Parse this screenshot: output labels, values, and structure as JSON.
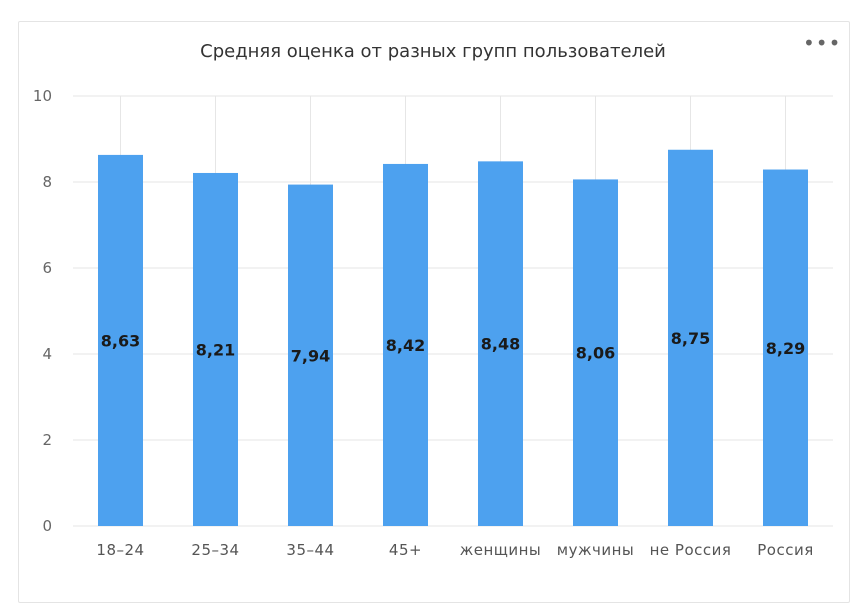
{
  "chart_data": {
    "type": "bar",
    "title": "Средняя оценка от разных групп пользователей",
    "categories": [
      "18–24",
      "25–34",
      "35–44",
      "45+",
      "женщины",
      "мужчины",
      "не Россия",
      "Россия"
    ],
    "values": [
      8.63,
      8.21,
      7.94,
      8.42,
      8.48,
      8.06,
      8.75,
      8.29
    ],
    "data_labels": [
      "8,63",
      "8,21",
      "7,94",
      "8,42",
      "8,48",
      "8,06",
      "8,75",
      "8,29"
    ],
    "ylim": [
      0,
      10
    ],
    "yticks": [
      0,
      2,
      4,
      6,
      8,
      10
    ],
    "xlabel": "",
    "ylabel": "",
    "grid": true,
    "bar_color": "#4da1ef",
    "grid_color": "#e6e6e6"
  },
  "menu_icon": "more-horizontal-icon",
  "menu_glyph": "•••"
}
